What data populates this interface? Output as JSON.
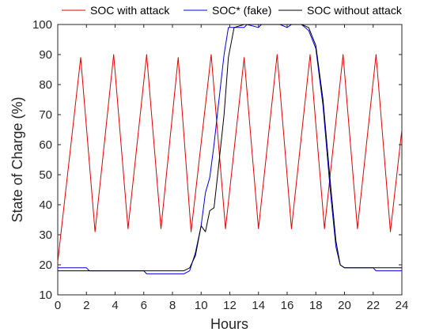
{
  "chart_data": {
    "type": "line",
    "title": "",
    "xlabel": "Hours",
    "ylabel": "State of Charge (%)",
    "xlim": [
      0,
      24
    ],
    "ylim": [
      10,
      100
    ],
    "xticks": [
      0,
      2,
      4,
      6,
      8,
      10,
      12,
      14,
      16,
      18,
      20,
      22,
      24
    ],
    "yticks": [
      10,
      20,
      30,
      40,
      50,
      60,
      70,
      80,
      90,
      100
    ],
    "grid": false,
    "legend_position": "top",
    "series": [
      {
        "name": "SOC with attack",
        "color": "#e00000",
        "x": [
          0.0,
          1.6,
          2.6,
          3.9,
          4.9,
          6.2,
          7.2,
          8.4,
          9.3,
          10.7,
          11.7,
          13.0,
          14.0,
          15.3,
          16.3,
          17.6,
          18.6,
          19.9,
          20.9,
          22.2,
          23.2,
          24.0
        ],
        "y": [
          21,
          89,
          31,
          90,
          32,
          90,
          32,
          89,
          31,
          90,
          32,
          89,
          32,
          90,
          32,
          90,
          32,
          90,
          32,
          90,
          31,
          65
        ]
      },
      {
        "name": "SOC* (fake)",
        "color": "#0000dd",
        "x": [
          0,
          0.2,
          2.0,
          2.2,
          6.0,
          6.2,
          8.8,
          9.2,
          9.6,
          10.0,
          10.3,
          10.6,
          10.9,
          11.2,
          11.6,
          11.9,
          12.3,
          13.0,
          13.2,
          14.0,
          14.2,
          15.5,
          16.0,
          16.3,
          17.0,
          17.5,
          18.0,
          18.5,
          19.0,
          19.4,
          19.7,
          20.0,
          22.0,
          22.2,
          24.0
        ],
        "y": [
          19,
          18,
          18,
          18,
          18,
          17,
          17,
          19,
          23,
          34,
          42,
          44,
          55,
          68,
          85,
          96,
          99,
          99,
          100,
          99,
          100,
          100,
          99,
          100,
          100,
          99,
          93,
          75,
          48,
          28,
          20,
          19,
          19,
          18,
          18
        ],
        "display_y": [
          19,
          19,
          19,
          18,
          18,
          17,
          17,
          18,
          24,
          33,
          44,
          49,
          60,
          73,
          90,
          99,
          99,
          99,
          100,
          99,
          100,
          100,
          99,
          100,
          100,
          98,
          92,
          73,
          45,
          26,
          20,
          19,
          19,
          18,
          18
        ]
      },
      {
        "name": "SOC without attack",
        "color": "#000000",
        "x": [
          0,
          0.2,
          8.8,
          9.2,
          9.6,
          10.0,
          10.3,
          10.6,
          10.9,
          11.2,
          11.6,
          11.9,
          12.3,
          13.0,
          16.0,
          17.0,
          17.5,
          18.0,
          18.5,
          19.0,
          19.4,
          19.7,
          20.0,
          24.0
        ],
        "y": [
          18,
          18,
          18,
          19,
          23,
          33,
          31,
          38,
          39,
          52,
          70,
          89,
          99,
          100,
          100,
          100,
          99,
          93,
          75,
          48,
          28,
          20,
          19,
          19
        ]
      }
    ]
  }
}
